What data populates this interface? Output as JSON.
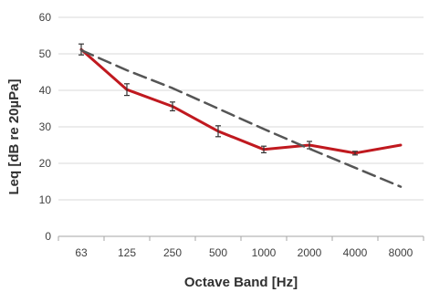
{
  "chart_data": {
    "type": "line",
    "title": "",
    "xlabel": "Octave Band [Hz]",
    "ylabel": "Leq [dB re 20µPa]",
    "categories": [
      "63",
      "125",
      "250",
      "500",
      "1000",
      "2000",
      "4000",
      "8000"
    ],
    "ylim": [
      0,
      60
    ],
    "yticks": [
      0,
      10,
      20,
      30,
      40,
      50,
      60
    ],
    "grid": "horizontal",
    "legend": "none",
    "series": [
      {
        "style": "solid",
        "color": "#c0191f",
        "values": [
          51.2,
          40.2,
          35.6,
          28.8,
          23.8,
          25.0,
          22.8,
          25.0
        ],
        "error_bars": [
          1.5,
          1.6,
          1.2,
          1.5,
          0.9,
          1.0,
          0.5,
          0
        ]
      },
      {
        "style": "dashed",
        "color": "#555555",
        "values": [
          51.0,
          45.5,
          40.6,
          35.0,
          29.4,
          24.0,
          18.8,
          13.6
        ]
      }
    ]
  }
}
